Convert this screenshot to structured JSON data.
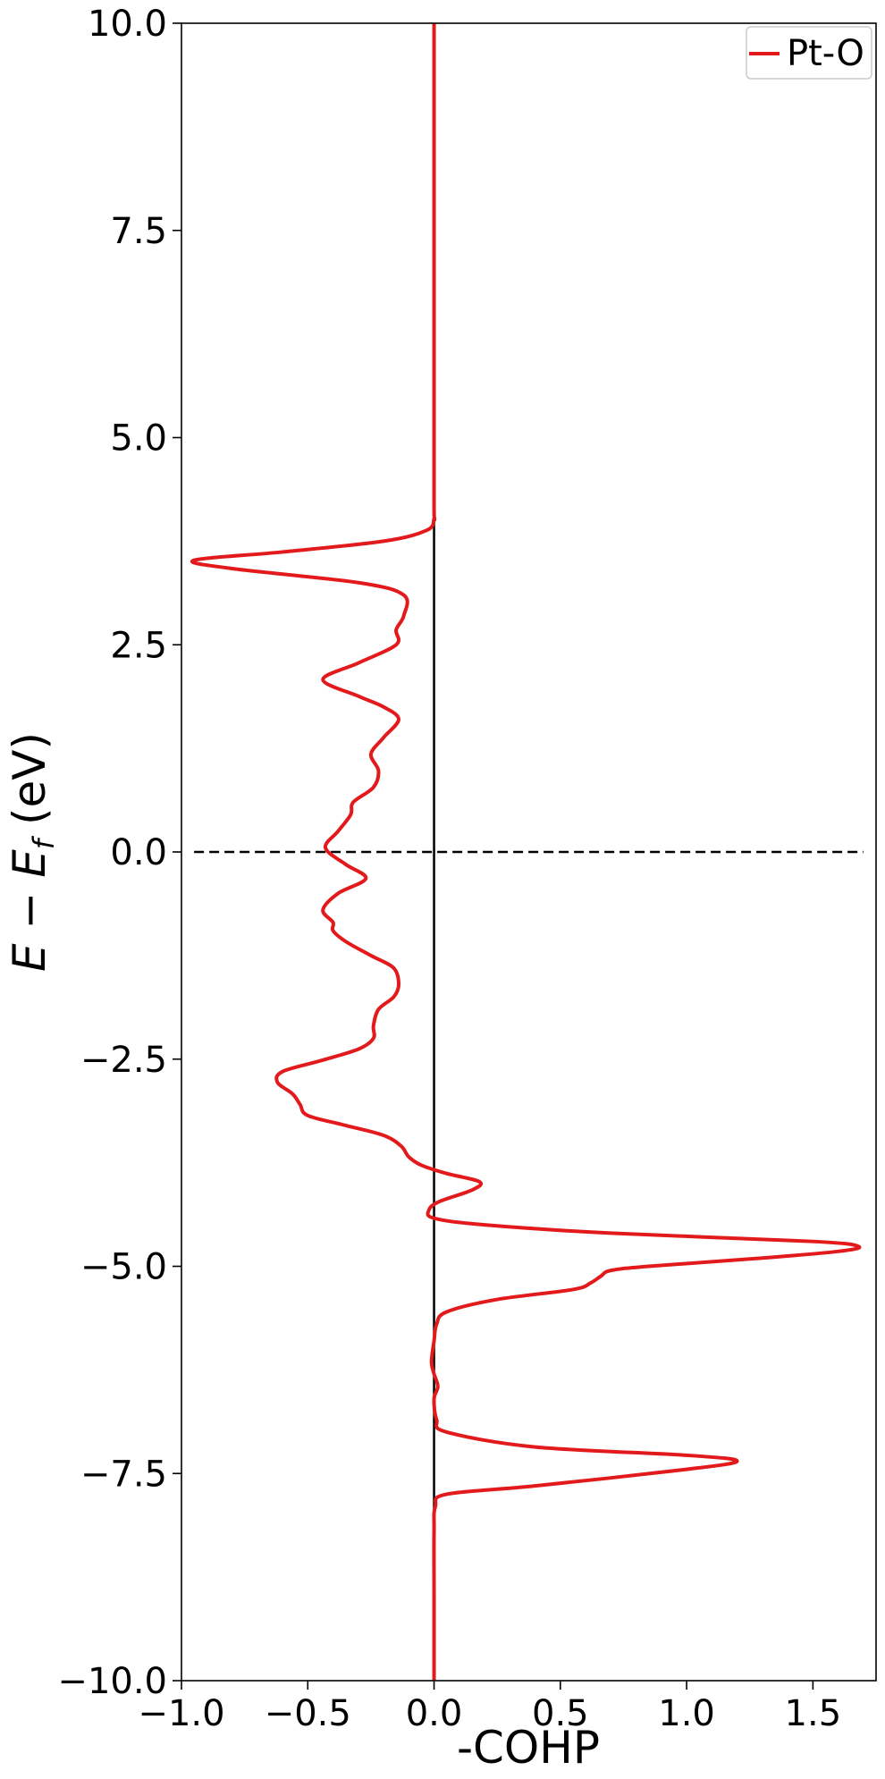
{
  "chart_data": {
    "type": "line",
    "xlabel": "-COHP",
    "ylabel_main": "E − E",
    "ylabel_sub": "f",
    "ylabel_unit": " (eV)",
    "xlim": [
      -1.0,
      1.75
    ],
    "ylim": [
      -10.0,
      10.0
    ],
    "x_ticks": [
      -1.0,
      -0.5,
      0.0,
      0.5,
      1.0,
      1.5
    ],
    "x_tick_labels": [
      "−1.0",
      "−0.5",
      "0.0",
      "0.5",
      "1.0",
      "1.5"
    ],
    "y_ticks": [
      -10.0,
      -7.5,
      -5.0,
      -2.5,
      0.0,
      2.5,
      5.0,
      7.5,
      10.0
    ],
    "y_tick_labels": [
      "−10.0",
      "−7.5",
      "−5.0",
      "−2.5",
      "0.0",
      "2.5",
      "5.0",
      "7.5",
      "10.0"
    ],
    "grid": false,
    "legend_position": "top-right",
    "fermi_level": 0.0,
    "series": [
      {
        "name": "Pt-O",
        "color": "#e31a1c",
        "points": [
          [
            0.0,
            -10.0
          ],
          [
            0.0,
            -9.0
          ],
          [
            0.0,
            -8.2
          ],
          [
            0.005,
            -7.9
          ],
          [
            0.05,
            -7.75
          ],
          [
            0.4,
            -7.65
          ],
          [
            1.0,
            -7.45
          ],
          [
            1.2,
            -7.35
          ],
          [
            1.0,
            -7.28
          ],
          [
            0.4,
            -7.18
          ],
          [
            0.05,
            -7.0
          ],
          [
            0.01,
            -6.85
          ],
          [
            0.0,
            -6.6
          ],
          [
            0.015,
            -6.45
          ],
          [
            0.0,
            -6.3
          ],
          [
            -0.01,
            -6.15
          ],
          [
            0.0,
            -5.9
          ],
          [
            0.01,
            -5.7
          ],
          [
            0.05,
            -5.55
          ],
          [
            0.25,
            -5.4
          ],
          [
            0.55,
            -5.28
          ],
          [
            0.62,
            -5.2
          ],
          [
            0.66,
            -5.12
          ],
          [
            0.7,
            -5.05
          ],
          [
            0.85,
            -5.0
          ],
          [
            1.3,
            -4.9
          ],
          [
            1.6,
            -4.82
          ],
          [
            1.68,
            -4.76
          ],
          [
            1.5,
            -4.7
          ],
          [
            0.7,
            -4.6
          ],
          [
            0.2,
            -4.5
          ],
          [
            0.0,
            -4.42
          ],
          [
            -0.02,
            -4.32
          ],
          [
            0.02,
            -4.22
          ],
          [
            0.15,
            -4.08
          ],
          [
            0.18,
            -3.98
          ],
          [
            0.05,
            -3.88
          ],
          [
            -0.05,
            -3.78
          ],
          [
            -0.1,
            -3.68
          ],
          [
            -0.13,
            -3.55
          ],
          [
            -0.2,
            -3.42
          ],
          [
            -0.35,
            -3.3
          ],
          [
            -0.5,
            -3.18
          ],
          [
            -0.53,
            -3.05
          ],
          [
            -0.56,
            -2.92
          ],
          [
            -0.62,
            -2.78
          ],
          [
            -0.6,
            -2.65
          ],
          [
            -0.45,
            -2.52
          ],
          [
            -0.3,
            -2.38
          ],
          [
            -0.24,
            -2.25
          ],
          [
            -0.24,
            -2.1
          ],
          [
            -0.22,
            -1.9
          ],
          [
            -0.16,
            -1.75
          ],
          [
            -0.14,
            -1.6
          ],
          [
            -0.16,
            -1.4
          ],
          [
            -0.25,
            -1.25
          ],
          [
            -0.35,
            -1.08
          ],
          [
            -0.4,
            -0.95
          ],
          [
            -0.4,
            -0.85
          ],
          [
            -0.44,
            -0.7
          ],
          [
            -0.38,
            -0.5
          ],
          [
            -0.27,
            -0.32
          ],
          [
            -0.35,
            -0.15
          ],
          [
            -0.43,
            0.05
          ],
          [
            -0.38,
            0.25
          ],
          [
            -0.33,
            0.45
          ],
          [
            -0.32,
            0.6
          ],
          [
            -0.24,
            0.78
          ],
          [
            -0.22,
            0.98
          ],
          [
            -0.25,
            1.18
          ],
          [
            -0.2,
            1.38
          ],
          [
            -0.14,
            1.6
          ],
          [
            -0.2,
            1.75
          ],
          [
            -0.3,
            1.88
          ],
          [
            -0.44,
            2.08
          ],
          [
            -0.3,
            2.28
          ],
          [
            -0.15,
            2.5
          ],
          [
            -0.15,
            2.68
          ],
          [
            -0.12,
            2.85
          ],
          [
            -0.12,
            3.1
          ],
          [
            -0.3,
            3.25
          ],
          [
            -0.8,
            3.42
          ],
          [
            -0.95,
            3.52
          ],
          [
            -0.6,
            3.62
          ],
          [
            -0.2,
            3.75
          ],
          [
            -0.03,
            3.88
          ],
          [
            0.0,
            4.02
          ],
          [
            0.0,
            4.2
          ],
          [
            0.0,
            6.0
          ],
          [
            0.0,
            8.0
          ],
          [
            0.0,
            10.0
          ]
        ]
      }
    ]
  }
}
